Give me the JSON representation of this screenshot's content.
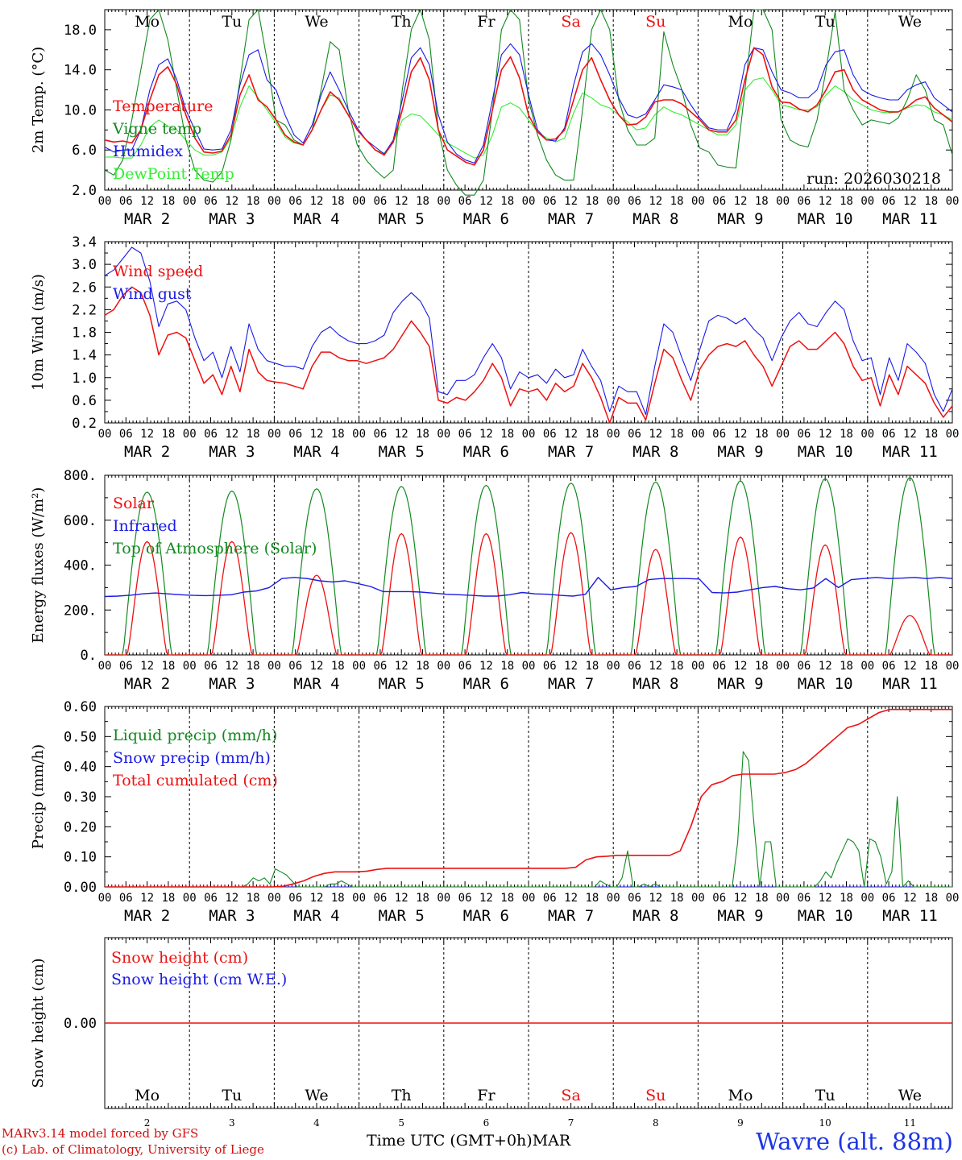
{
  "chart_data": [
    {
      "type": "line",
      "ylabel": "2m Temp. (°C)",
      "ylim": [
        2,
        20
      ],
      "yticks": [
        "2.0",
        "6.0",
        "10.0",
        "14.0",
        "18.0"
      ],
      "run_label": "run: 2026030218",
      "series": [
        {
          "name": "Temperature",
          "color": "#ee1111",
          "values": [
            7,
            6.8,
            6.9,
            6.7,
            8,
            11,
            13.5,
            14.3,
            12.5,
            9.5,
            7.2,
            5.8,
            5.7,
            5.9,
            7.5,
            11.5,
            13.5,
            11,
            10.3,
            9,
            7.5,
            6.8,
            6.5,
            8,
            10,
            11.8,
            11,
            9.5,
            8,
            7,
            6,
            5.5,
            6.8,
            10,
            13.8,
            15.2,
            13,
            8,
            6,
            5.4,
            4.8,
            4.5,
            6,
            10,
            14,
            15.3,
            13.2,
            9.5,
            7.8,
            7,
            7.1,
            8,
            11,
            14,
            15.2,
            13,
            11,
            9.5,
            8.5,
            8.6,
            9.3,
            10.8,
            11,
            11,
            10.6,
            9.8,
            9,
            8,
            7.8,
            7.8,
            9,
            13,
            16.2,
            15.5,
            12.3,
            10.8,
            10.7,
            10.1,
            9.8,
            10.5,
            12,
            13.8,
            14,
            12,
            11,
            10.5,
            10,
            9.8,
            9.8,
            10.3,
            11,
            11.3,
            10.2,
            9.5,
            8.8
          ]
        },
        {
          "name": "Vigne temp",
          "color": "#12891f",
          "values": [
            4,
            3.5,
            5,
            9,
            14,
            19,
            20,
            17,
            12,
            7,
            4,
            3,
            2.8,
            3.8,
            7,
            13,
            19,
            20,
            15,
            9,
            8.5,
            7,
            6.5,
            8,
            12,
            16.8,
            16,
            10,
            6.5,
            5,
            4,
            3.2,
            4,
            12,
            18,
            20,
            17,
            8,
            4,
            2.5,
            1.5,
            1.5,
            3,
            10,
            18,
            20,
            19,
            11,
            7.5,
            5,
            3.5,
            3,
            3,
            10,
            18,
            20,
            18,
            11,
            8,
            6.5,
            6.5,
            7.2,
            17.8,
            14.5,
            12,
            8.5,
            6.2,
            5.8,
            4.5,
            4.3,
            4.2,
            12,
            20,
            20,
            18,
            9,
            7,
            6.5,
            6.3,
            9,
            14,
            19.8,
            12,
            10,
            8.5,
            9,
            8.8,
            8.6,
            9.2,
            11,
            13.5,
            12,
            9,
            8.5,
            5.5
          ]
        },
        {
          "name": "Humidex",
          "color": "#1a1ae6",
          "values": [
            6.3,
            5.8,
            6,
            6,
            8,
            12,
            14.5,
            15.1,
            13,
            10,
            8,
            6.1,
            6,
            6.1,
            8,
            12.5,
            15.5,
            16,
            13,
            12,
            9.5,
            7.5,
            6.7,
            8.5,
            11.5,
            13.8,
            12,
            10,
            8.2,
            7,
            6.3,
            5.6,
            7,
            11,
            15.2,
            16.2,
            14.5,
            9.5,
            6.8,
            5.6,
            5,
            4.7,
            6.5,
            11,
            15.5,
            16.6,
            15.5,
            11.5,
            8,
            7,
            6.9,
            8.2,
            12.5,
            15.8,
            16.6,
            15.5,
            13.5,
            11.2,
            9.5,
            9.2,
            9.6,
            11,
            12.5,
            12.3,
            12,
            10.5,
            9.2,
            8.2,
            8,
            8,
            10,
            14.5,
            16.2,
            16,
            13.8,
            12,
            11.7,
            11.2,
            11.2,
            12,
            14.5,
            15.8,
            16,
            13.5,
            12,
            11.5,
            11.2,
            11,
            11,
            12,
            12.5,
            12.8,
            11.2,
            10.5,
            9.8
          ]
        },
        {
          "name": "DewPoint Temp",
          "color": "#33ee33",
          "values": [
            5.3,
            5.3,
            5.2,
            5.2,
            6.5,
            8.3,
            9,
            8.4,
            8,
            7,
            6,
            5.5,
            5.5,
            5.8,
            7.2,
            10.3,
            12.4,
            11.2,
            10,
            8.7,
            7.3,
            6.7,
            6.5,
            8,
            10,
            11.5,
            11.2,
            9.5,
            8,
            7,
            6,
            5.7,
            6.8,
            9,
            9.6,
            9.4,
            8.5,
            7.5,
            6.7,
            6.2,
            5.7,
            5.2,
            5.5,
            7.5,
            10.3,
            10.7,
            10.2,
            9,
            7.8,
            7.2,
            6.8,
            7.2,
            9.7,
            11.7,
            11.2,
            10.5,
            10.2,
            9.5,
            8.8,
            8,
            8.2,
            9.5,
            10.3,
            9.8,
            9.5,
            9,
            8.5,
            8,
            7.5,
            7.5,
            8.5,
            12,
            13,
            13.2,
            12,
            10.5,
            10.3,
            10,
            10,
            10.3,
            11.5,
            12.4,
            11.8,
            11,
            10.5,
            10,
            9.8,
            9.7,
            9.8,
            10.2,
            10.5,
            10.4,
            9.8,
            9.5,
            9
          ]
        }
      ]
    },
    {
      "type": "line",
      "ylabel": "10m Wind (m/s)",
      "ylim": [
        0.2,
        3.4
      ],
      "yticks": [
        "0.2",
        "0.6",
        "1.0",
        "1.4",
        "1.8",
        "2.2",
        "2.6",
        "3.0",
        "3.4"
      ],
      "series": [
        {
          "name": "Wind speed",
          "color": "#ee1111",
          "values": [
            2.1,
            2.2,
            2.45,
            2.6,
            2.5,
            2.1,
            1.4,
            1.75,
            1.8,
            1.7,
            1.3,
            0.9,
            1.05,
            0.7,
            1.2,
            0.75,
            1.5,
            1.1,
            0.95,
            0.92,
            0.9,
            0.85,
            0.8,
            1.2,
            1.45,
            1.45,
            1.35,
            1.3,
            1.3,
            1.25,
            1.3,
            1.35,
            1.5,
            1.75,
            2,
            1.8,
            1.55,
            0.6,
            0.55,
            0.65,
            0.6,
            0.75,
            0.95,
            1.25,
            1,
            0.5,
            0.8,
            0.75,
            0.8,
            0.6,
            0.9,
            0.75,
            0.85,
            1.25,
            1,
            0.65,
            0.2,
            0.65,
            0.55,
            0.55,
            0.25,
            0.9,
            1.5,
            1.35,
            0.95,
            0.6,
            1.15,
            1.4,
            1.55,
            1.6,
            1.55,
            1.65,
            1.4,
            1.2,
            0.85,
            1.2,
            1.55,
            1.65,
            1.5,
            1.5,
            1.65,
            1.8,
            1.6,
            1.2,
            0.95,
            1,
            0.5,
            1.05,
            0.7,
            1.2,
            1.05,
            0.9,
            0.55,
            0.3,
            0.5
          ]
        },
        {
          "name": "Wind gust",
          "color": "#1a1ae6",
          "values": [
            2.8,
            2.9,
            3.1,
            3.3,
            3.2,
            2.7,
            1.9,
            2.3,
            2.35,
            2.2,
            1.7,
            1.3,
            1.45,
            1,
            1.55,
            1.1,
            1.95,
            1.5,
            1.3,
            1.25,
            1.2,
            1.2,
            1.15,
            1.55,
            1.8,
            1.9,
            1.75,
            1.65,
            1.6,
            1.6,
            1.65,
            1.75,
            2.15,
            2.35,
            2.5,
            2.35,
            2.05,
            0.75,
            0.7,
            0.95,
            0.95,
            1.05,
            1.35,
            1.6,
            1.35,
            0.8,
            1.1,
            1,
            1.05,
            0.9,
            1.15,
            1,
            1.05,
            1.5,
            1.2,
            0.95,
            0.4,
            0.85,
            0.75,
            0.75,
            0.35,
            1.2,
            1.95,
            1.8,
            1.35,
            0.95,
            1.5,
            2,
            2.1,
            2.05,
            1.95,
            2.05,
            1.85,
            1.7,
            1.3,
            1.7,
            2,
            2.15,
            1.95,
            1.9,
            2.15,
            2.35,
            2.2,
            1.65,
            1.3,
            1.35,
            0.7,
            1.35,
            0.95,
            1.6,
            1.45,
            1.25,
            0.7,
            0.4,
            0.8
          ]
        }
      ]
    },
    {
      "type": "line",
      "ylabel": "Energy fluxes (W/m²)",
      "ylim": [
        0,
        800
      ],
      "yticks": [
        "0.",
        "200.",
        "400.",
        "600.",
        "800."
      ],
      "series": [
        {
          "name": "Solar",
          "color": "#ee1111",
          "peaks": [
            505,
            505,
            355,
            540,
            540,
            545,
            470,
            525,
            490,
            175
          ]
        },
        {
          "name": "Infrared",
          "color": "#1a1ae6",
          "values": [
            260,
            262,
            266,
            272,
            276,
            272,
            268,
            265,
            264,
            266,
            268,
            280,
            285,
            300,
            340,
            345,
            340,
            330,
            325,
            330,
            318,
            305,
            282,
            282,
            282,
            280,
            275,
            270,
            268,
            265,
            262,
            262,
            268,
            278,
            272,
            270,
            265,
            262,
            270,
            345,
            290,
            300,
            305,
            335,
            340,
            340,
            340,
            338,
            278,
            276,
            280,
            290,
            300,
            305,
            295,
            290,
            298,
            340,
            300,
            335,
            340,
            345,
            340,
            342,
            345,
            340,
            345,
            340
          ]
        },
        {
          "name": "Top of Atmosphere (Solar)",
          "color": "#12891f",
          "peaks": [
            725,
            730,
            740,
            750,
            755,
            765,
            770,
            775,
            785,
            790
          ]
        }
      ]
    },
    {
      "type": "line",
      "ylabel": "Precip (mm/h)",
      "ylim": [
        0,
        0.6
      ],
      "yticks": [
        "0.00",
        "0.10",
        "0.20",
        "0.30",
        "0.40",
        "0.50",
        "0.60"
      ],
      "series": [
        {
          "name": "Liquid precip (mm/h)",
          "color": "#12891f",
          "values": [
            0,
            0,
            0,
            0,
            0,
            0,
            0,
            0,
            0,
            0,
            0,
            0,
            0,
            0,
            0,
            0,
            0,
            0,
            0,
            0,
            0,
            0,
            0,
            0,
            0,
            0,
            0.01,
            0.03,
            0.02,
            0.03,
            0.01,
            0.06,
            0.05,
            0.04,
            0.02,
            0,
            0,
            0,
            0,
            0,
            0,
            0.01,
            0.01,
            0.02,
            0.01,
            0,
            0,
            0,
            0,
            0,
            0,
            0,
            0,
            0,
            0,
            0,
            0,
            0,
            0,
            0,
            0,
            0,
            0,
            0,
            0,
            0,
            0,
            0,
            0,
            0,
            0,
            0,
            0,
            0,
            0,
            0,
            0,
            0,
            0,
            0,
            0,
            0,
            0,
            0,
            0,
            0,
            0,
            0,
            0,
            0,
            0.02,
            0.01,
            0,
            0,
            0.03,
            0.12,
            0,
            0,
            0.01,
            0,
            0.01,
            0,
            0,
            0,
            0,
            0,
            0,
            0,
            0,
            0,
            0,
            0,
            0,
            0,
            0,
            0.15,
            0.45,
            0.42,
            0.2,
            0,
            0.15,
            0.15,
            0,
            0,
            0,
            0,
            0,
            0,
            0,
            0,
            0.02,
            0.05,
            0.03,
            0.08,
            0.12,
            0.16,
            0.15,
            0.12,
            0,
            0.16,
            0.15,
            0.1,
            0.01,
            0.05,
            0.3,
            0,
            0.02,
            0,
            0,
            0,
            0,
            0,
            0,
            0,
            0
          ]
        },
        {
          "name": "Snow precip (mm/h)",
          "color": "#1a1ae6",
          "values": [
            0,
            0,
            0,
            0,
            0,
            0,
            0,
            0,
            0,
            0,
            0,
            0,
            0,
            0,
            0,
            0,
            0,
            0,
            0,
            0,
            0,
            0,
            0,
            0
          ]
        },
        {
          "name": "Total cumulated (cm)",
          "color": "#ee1111",
          "values": [
            0,
            0,
            0,
            0,
            0,
            0,
            0,
            0,
            0,
            0,
            0,
            0,
            0,
            0,
            0,
            0,
            0,
            0.002,
            0.01,
            0.02,
            0.035,
            0.045,
            0.05,
            0.05,
            0.05,
            0.052,
            0.058,
            0.062,
            0.062,
            0.062,
            0.062,
            0.062,
            0.062,
            0.062,
            0.062,
            0.062,
            0.062,
            0.062,
            0.062,
            0.062,
            0.062,
            0.062,
            0.062,
            0.062,
            0.062,
            0.065,
            0.09,
            0.1,
            0.102,
            0.105,
            0.105,
            0.105,
            0.105,
            0.105,
            0.105,
            0.12,
            0.2,
            0.3,
            0.34,
            0.35,
            0.37,
            0.375,
            0.375,
            0.375,
            0.375,
            0.38,
            0.39,
            0.41,
            0.44,
            0.47,
            0.5,
            0.53,
            0.54,
            0.56,
            0.58,
            0.59,
            0.59,
            0.59,
            0.59,
            0.59,
            0.59,
            0.59
          ]
        }
      ]
    },
    {
      "type": "line",
      "ylabel": "Snow height (cm)",
      "ylim": [
        -1,
        1
      ],
      "yticks": [
        "0.00"
      ],
      "series": [
        {
          "name": "Snow height (cm)",
          "color": "#ee1111",
          "values": [
            0,
            0
          ]
        },
        {
          "name": "Snow height (cm W.E.)",
          "color": "#1a1ae6",
          "values": [
            0,
            0
          ]
        }
      ]
    }
  ],
  "x_axis": {
    "hour_ticks": [
      "00",
      "06",
      "12",
      "18"
    ],
    "final_tick": "00",
    "dates": [
      "MAR  2",
      "MAR  3",
      "MAR  4",
      "MAR  5",
      "MAR  6",
      "MAR  7",
      "MAR  8",
      "MAR  9",
      "MAR 10",
      "MAR 11"
    ],
    "day_numbers": [
      "2",
      "3",
      "4",
      "5",
      "6",
      "7",
      "8",
      "9",
      "10",
      "11"
    ],
    "weekdays": [
      {
        "label": "Mo",
        "color": "#000000"
      },
      {
        "label": "Tu",
        "color": "#000000"
      },
      {
        "label": "We",
        "color": "#000000"
      },
      {
        "label": "Th",
        "color": "#000000"
      },
      {
        "label": "Fr",
        "color": "#000000"
      },
      {
        "label": "Sa",
        "color": "#ee1111"
      },
      {
        "label": "Su",
        "color": "#ee1111"
      },
      {
        "label": "Mo",
        "color": "#000000"
      },
      {
        "label": "Tu",
        "color": "#000000"
      },
      {
        "label": "We",
        "color": "#000000"
      }
    ]
  },
  "footer": {
    "model_line": "MARv3.14 model forced by GFS",
    "credit_line": "(c) Lab. of Climatology, University of Liege",
    "xlabel": "Time UTC (GMT+0h)MAR",
    "station": "Wavre (alt. 88m)"
  }
}
